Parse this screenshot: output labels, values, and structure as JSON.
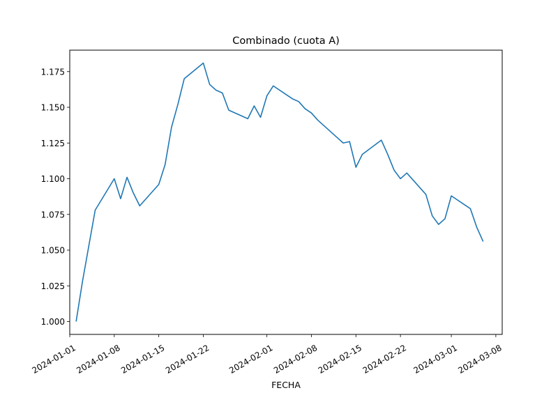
{
  "chart_data": {
    "type": "line",
    "title": "Combinado (cuota A)",
    "xlabel": "FECHA",
    "ylabel": "",
    "grid": false,
    "legend": "none",
    "xlim": [
      "2024-01-01",
      "2024-03-09"
    ],
    "ylim": [
      0.991,
      1.19
    ],
    "x_ticks": [
      "2024-01-01",
      "2024-01-08",
      "2024-01-15",
      "2024-01-22",
      "2024-02-01",
      "2024-02-08",
      "2024-02-15",
      "2024-02-22",
      "2024-03-01",
      "2024-03-08"
    ],
    "y_ticks": [
      "1.000",
      "1.025",
      "1.050",
      "1.075",
      "1.100",
      "1.125",
      "1.150",
      "1.175"
    ],
    "series": [
      {
        "color": "#1f77b4",
        "x": [
          "2024-01-02",
          "2024-01-03",
          "2024-01-04",
          "2024-01-05",
          "2024-01-08",
          "2024-01-09",
          "2024-01-10",
          "2024-01-11",
          "2024-01-12",
          "2024-01-15",
          "2024-01-16",
          "2024-01-17",
          "2024-01-18",
          "2024-01-19",
          "2024-01-22",
          "2024-01-23",
          "2024-01-24",
          "2024-01-25",
          "2024-01-26",
          "2024-01-29",
          "2024-01-30",
          "2024-01-31",
          "2024-02-01",
          "2024-02-02",
          "2024-02-05",
          "2024-02-06",
          "2024-02-07",
          "2024-02-08",
          "2024-02-09",
          "2024-02-12",
          "2024-02-13",
          "2024-02-14",
          "2024-02-15",
          "2024-02-16",
          "2024-02-19",
          "2024-02-20",
          "2024-02-21",
          "2024-02-22",
          "2024-02-23",
          "2024-02-26",
          "2024-02-27",
          "2024-02-28",
          "2024-02-29",
          "2024-03-01",
          "2024-03-04",
          "2024-03-05",
          "2024-03-06"
        ],
        "values": [
          1.0,
          1.028,
          1.053,
          1.078,
          1.1,
          1.086,
          1.101,
          1.09,
          1.081,
          1.096,
          1.11,
          1.136,
          1.152,
          1.17,
          1.181,
          1.166,
          1.162,
          1.16,
          1.148,
          1.142,
          1.151,
          1.143,
          1.158,
          1.165,
          1.156,
          1.154,
          1.149,
          1.146,
          1.141,
          1.129,
          1.125,
          1.126,
          1.108,
          1.117,
          1.127,
          1.117,
          1.106,
          1.1,
          1.104,
          1.089,
          1.074,
          1.068,
          1.072,
          1.088,
          1.079,
          1.066,
          1.056
        ]
      }
    ]
  }
}
